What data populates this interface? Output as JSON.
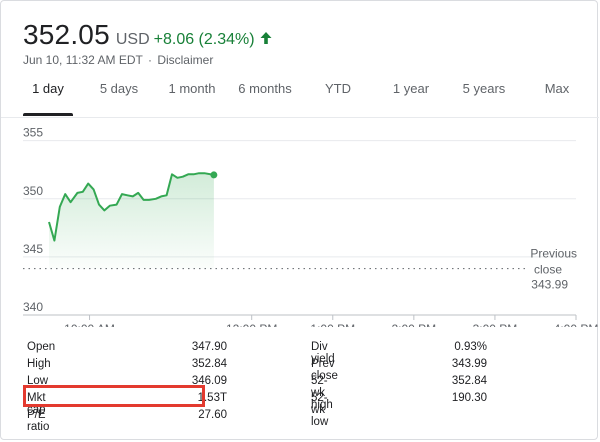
{
  "quote": {
    "price": "352.05",
    "currency": "USD",
    "change": "+8.06 (2.34%)",
    "timestamp": "Jun 10, 11:32 AM EDT",
    "separator": "·",
    "disclaimer": "Disclaimer",
    "up_color": "#188038"
  },
  "tabs": [
    "1 day",
    "5 days",
    "1 month",
    "6 months",
    "YTD",
    "1 year",
    "5 years",
    "Max"
  ],
  "active_tab": "1 day",
  "previous_close_label": [
    "Previous",
    "close"
  ],
  "chart_data": {
    "type": "area",
    "xlabel": "",
    "ylabel": "",
    "x_ticks": [
      "10:00 AM",
      "12:00 PM",
      "1:00 PM",
      "2:00 PM",
      "3:00 PM",
      "4:00 PM"
    ],
    "y_ticks": [
      340,
      345,
      350,
      355
    ],
    "ylim": [
      340,
      356
    ],
    "x_range": [
      "9:30 AM",
      "4:00 PM"
    ],
    "reference_line": {
      "label": "Previous close",
      "value": 343.99
    },
    "series": [
      {
        "color": "#34a853",
        "x": [
          "9:30",
          "9:34",
          "9:38",
          "9:42",
          "9:46",
          "9:51",
          "9:55",
          "9:59",
          "10:03",
          "10:07",
          "10:11",
          "10:15",
          "10:20",
          "10:24",
          "10:28",
          "10:32",
          "10:36",
          "10:40",
          "10:44",
          "10:49",
          "10:53",
          "10:57",
          "11:01",
          "11:05",
          "11:09",
          "11:13",
          "11:17",
          "11:21",
          "11:25",
          "11:32"
        ],
        "values": [
          348.0,
          346.4,
          349.3,
          350.4,
          349.7,
          350.5,
          350.6,
          351.3,
          350.8,
          349.5,
          349.0,
          349.4,
          349.5,
          350.4,
          350.3,
          350.2,
          350.5,
          349.9,
          349.9,
          350.0,
          350.2,
          350.3,
          352.1,
          351.8,
          351.9,
          352.1,
          352.1,
          352.2,
          352.2,
          352.05
        ]
      }
    ]
  },
  "stats": {
    "left": [
      {
        "label": "Open",
        "value": "347.90"
      },
      {
        "label": "High",
        "value": "352.84"
      },
      {
        "label": "Low",
        "value": "346.09"
      },
      {
        "label": "Mkt cap",
        "value": "1.53T"
      },
      {
        "label": "P/E ratio",
        "value": "27.60"
      }
    ],
    "right": [
      {
        "label": "Div yield",
        "value": "0.93%"
      },
      {
        "label": "Prev close",
        "value": "343.99"
      },
      {
        "label": "52-wk high",
        "value": "352.84"
      },
      {
        "label": "52-wk low",
        "value": "190.30"
      }
    ]
  },
  "highlight_color": "#e33a2f"
}
